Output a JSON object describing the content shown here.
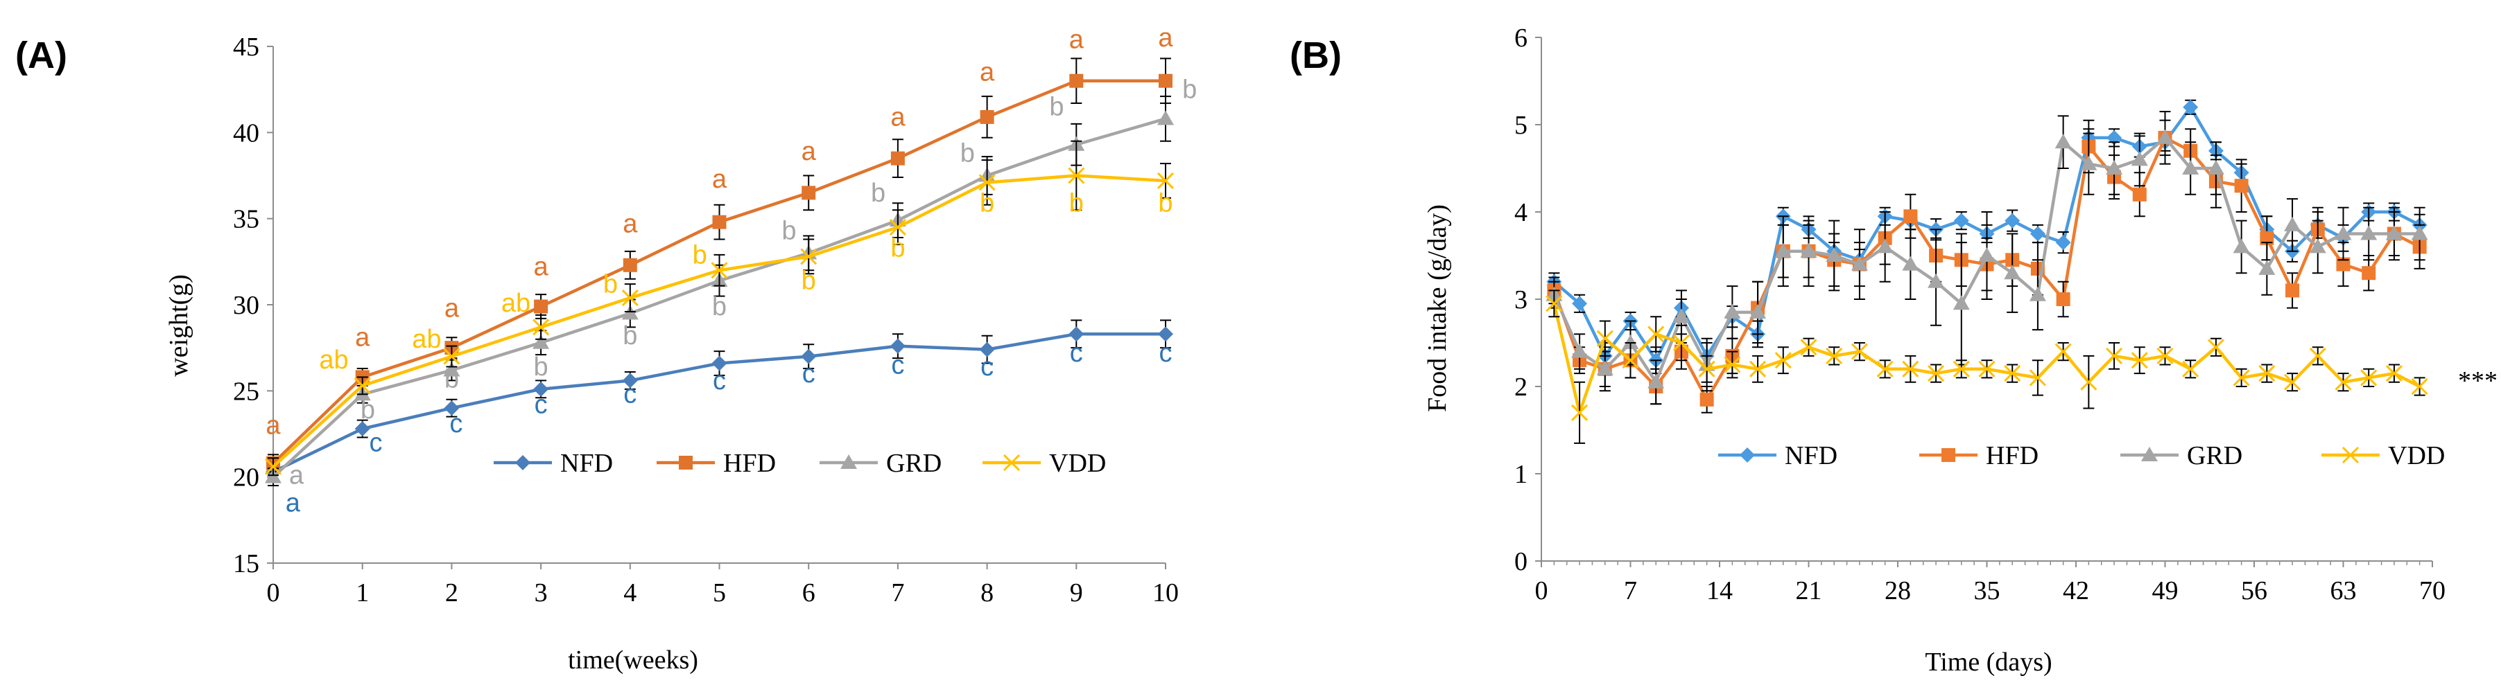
{
  "chart_data": [
    {
      "panel": "(A)",
      "type": "line",
      "xlabel": "time(weeks)",
      "ylabel": "weight(g)",
      "ylim": [
        15,
        45
      ],
      "yticks": [
        15,
        20,
        25,
        30,
        35,
        40,
        45
      ],
      "xlim": [
        0,
        10
      ],
      "xticks": [
        0,
        1,
        2,
        3,
        4,
        5,
        6,
        7,
        8,
        9,
        10
      ],
      "legend_position": "bottom-right",
      "series": [
        {
          "name": "NFD",
          "color": "#4a7ebb",
          "marker": "diamond",
          "x": [
            0,
            1,
            2,
            3,
            4,
            5,
            6,
            7,
            8,
            9,
            10
          ],
          "values": [
            20.3,
            22.8,
            24.0,
            25.1,
            25.6,
            26.6,
            27.0,
            27.6,
            27.4,
            28.3,
            28.3
          ],
          "errors": [
            0.5,
            0.5,
            0.5,
            0.5,
            0.5,
            0.7,
            0.7,
            0.7,
            0.8,
            0.8,
            0.8
          ]
        },
        {
          "name": "HFD",
          "color": "#e0742c",
          "marker": "square",
          "x": [
            0,
            1,
            2,
            3,
            4,
            5,
            6,
            7,
            8,
            9,
            10
          ],
          "values": [
            20.8,
            25.8,
            27.5,
            29.9,
            32.3,
            34.8,
            36.5,
            38.5,
            40.9,
            43.0,
            43.0
          ],
          "errors": [
            0.5,
            0.5,
            0.6,
            0.7,
            0.8,
            1.0,
            1.0,
            1.1,
            1.2,
            1.3,
            1.3
          ]
        },
        {
          "name": "GRD",
          "color": "#a5a5a5",
          "marker": "triangle",
          "x": [
            0,
            1,
            2,
            3,
            4,
            5,
            6,
            7,
            8,
            9,
            10
          ],
          "values": [
            20.0,
            24.8,
            26.2,
            27.8,
            29.5,
            31.4,
            33.0,
            34.9,
            37.5,
            39.3,
            40.8
          ],
          "errors": [
            0.5,
            0.5,
            0.6,
            0.7,
            0.8,
            0.9,
            1.0,
            1.0,
            1.1,
            1.2,
            1.3
          ]
        },
        {
          "name": "VDD",
          "color": "#ffc000",
          "marker": "x",
          "x": [
            0,
            1,
            2,
            3,
            4,
            5,
            6,
            7,
            8,
            9,
            10
          ],
          "values": [
            20.6,
            25.3,
            27.0,
            28.7,
            30.4,
            32.0,
            32.8,
            34.5,
            37.1,
            37.5,
            37.2
          ],
          "errors": [
            0.5,
            0.5,
            0.6,
            0.7,
            0.8,
            0.9,
            1.0,
            1.0,
            1.3,
            2.0,
            1.0
          ]
        }
      ],
      "annotations": [
        {
          "text": "a",
          "series": "HFD",
          "x": 0,
          "y": 22.5
        },
        {
          "text": "a",
          "series": "GRD",
          "x": 0.26,
          "y": 19.6
        },
        {
          "text": "a",
          "series": "NFD",
          "x": 0.22,
          "y": 18.0
        },
        {
          "text": "c",
          "series": "NFD",
          "x": 1.15,
          "y": 21.5
        },
        {
          "text": "b",
          "series": "GRD",
          "x": 1.06,
          "y": 23.4
        },
        {
          "text": "ab",
          "series": "VDD",
          "x": 0.68,
          "y": 26.3
        },
        {
          "text": "a",
          "series": "HFD",
          "x": 1.0,
          "y": 27.6
        },
        {
          "text": "c",
          "series": "NFD",
          "x": 2.05,
          "y": 22.6
        },
        {
          "text": "b",
          "series": "GRD",
          "x": 2.0,
          "y": 25.2
        },
        {
          "text": "ab",
          "series": "VDD",
          "x": 1.72,
          "y": 27.5
        },
        {
          "text": "a",
          "series": "HFD",
          "x": 2.0,
          "y": 29.3
        },
        {
          "text": "c",
          "series": "NFD",
          "x": 3.0,
          "y": 23.7
        },
        {
          "text": "b",
          "series": "GRD",
          "x": 3.0,
          "y": 25.9
        },
        {
          "text": "ab",
          "series": "VDD",
          "x": 2.72,
          "y": 29.6
        },
        {
          "text": "a",
          "series": "HFD",
          "x": 3.0,
          "y": 31.7
        },
        {
          "text": "c",
          "series": "NFD",
          "x": 4.0,
          "y": 24.3
        },
        {
          "text": "b",
          "series": "GRD",
          "x": 4.0,
          "y": 27.7
        },
        {
          "text": "b",
          "series": "VDD",
          "x": 3.78,
          "y": 30.7
        },
        {
          "text": "a",
          "series": "HFD",
          "x": 4.0,
          "y": 34.2
        },
        {
          "text": "c",
          "series": "NFD",
          "x": 5.0,
          "y": 25.1
        },
        {
          "text": "b",
          "series": "GRD",
          "x": 5.0,
          "y": 29.4
        },
        {
          "text": "b",
          "series": "VDD",
          "x": 4.78,
          "y": 32.4
        },
        {
          "text": "a",
          "series": "HFD",
          "x": 5.0,
          "y": 36.8
        },
        {
          "text": "c",
          "series": "NFD",
          "x": 6.0,
          "y": 25.5
        },
        {
          "text": "b",
          "series": "VDD",
          "x": 6.0,
          "y": 30.9
        },
        {
          "text": "b",
          "series": "GRD",
          "x": 5.78,
          "y": 33.8
        },
        {
          "text": "a",
          "series": "HFD",
          "x": 6.0,
          "y": 38.4
        },
        {
          "text": "c",
          "series": "NFD",
          "x": 7.0,
          "y": 26.0
        },
        {
          "text": "b",
          "series": "VDD",
          "x": 7.0,
          "y": 32.8
        },
        {
          "text": "b",
          "series": "GRD",
          "x": 6.78,
          "y": 36.0
        },
        {
          "text": "a",
          "series": "HFD",
          "x": 7.0,
          "y": 40.4
        },
        {
          "text": "c",
          "series": "NFD",
          "x": 8.0,
          "y": 25.9
        },
        {
          "text": "b",
          "series": "VDD",
          "x": 8.0,
          "y": 35.4
        },
        {
          "text": "b",
          "series": "GRD",
          "x": 7.78,
          "y": 38.3
        },
        {
          "text": "a",
          "series": "HFD",
          "x": 8.0,
          "y": 43.0
        },
        {
          "text": "c",
          "series": "NFD",
          "x": 9.0,
          "y": 26.7
        },
        {
          "text": "b",
          "series": "VDD",
          "x": 9.0,
          "y": 35.4
        },
        {
          "text": "b",
          "series": "GRD",
          "x": 8.78,
          "y": 41.0
        },
        {
          "text": "a",
          "series": "HFD",
          "x": 9.0,
          "y": 44.9
        },
        {
          "text": "c",
          "series": "NFD",
          "x": 10.0,
          "y": 26.7
        },
        {
          "text": "b",
          "series": "VDD",
          "x": 10.0,
          "y": 35.4
        },
        {
          "text": "b",
          "series": "GRD",
          "x": 10.27,
          "y": 42.0
        },
        {
          "text": "a",
          "series": "HFD",
          "x": 10.0,
          "y": 45.0
        }
      ]
    },
    {
      "panel": "(B)",
      "type": "line",
      "xlabel": "Time (days)",
      "ylabel": "Food intake (g/day)",
      "ylim": [
        0,
        6
      ],
      "yticks": [
        0,
        1,
        2,
        3,
        4,
        5,
        6
      ],
      "xlim": [
        0,
        70
      ],
      "xticks": [
        0,
        7,
        14,
        21,
        28,
        35,
        42,
        49,
        56,
        63,
        70
      ],
      "legend_position": "center",
      "annotation": "***",
      "series": [
        {
          "name": "NFD",
          "color": "#4a9be0",
          "marker": "diamond",
          "x": [
            1,
            3,
            5,
            7,
            9,
            11,
            13,
            15,
            17,
            19,
            21,
            23,
            25,
            27,
            29,
            31,
            33,
            35,
            37,
            39,
            41,
            43,
            45,
            47,
            49,
            51,
            53,
            55,
            57,
            59,
            61,
            63,
            65,
            67,
            69
          ],
          "values": [
            3.2,
            2.95,
            2.35,
            2.75,
            2.3,
            2.9,
            2.35,
            2.8,
            2.6,
            3.95,
            3.8,
            3.55,
            3.45,
            3.95,
            3.9,
            3.8,
            3.9,
            3.75,
            3.9,
            3.75,
            3.65,
            4.85,
            4.85,
            4.75,
            4.8,
            5.2,
            4.7,
            4.45,
            3.8,
            3.55,
            3.85,
            3.7,
            4.0,
            4.0,
            3.85
          ],
          "errors": [
            0.1,
            0.1,
            0.15,
            0.1,
            0.15,
            0.1,
            0.15,
            0.12,
            0.15,
            0.1,
            0.1,
            0.1,
            0.12,
            0.1,
            0.1,
            0.12,
            0.1,
            0.1,
            0.12,
            0.1,
            0.12,
            0.1,
            0.1,
            0.12,
            0.1,
            0.08,
            0.1,
            0.1,
            0.15,
            0.12,
            0.15,
            0.15,
            0.1,
            0.1,
            0.12
          ]
        },
        {
          "name": "HFD",
          "color": "#ef7b2e",
          "marker": "square",
          "x": [
            1,
            3,
            5,
            7,
            9,
            11,
            13,
            15,
            17,
            19,
            21,
            23,
            25,
            27,
            29,
            31,
            33,
            35,
            37,
            39,
            41,
            43,
            45,
            47,
            49,
            51,
            53,
            55,
            57,
            59,
            61,
            63,
            65,
            67,
            69
          ],
          "values": [
            3.1,
            2.3,
            2.2,
            2.3,
            2.0,
            2.4,
            1.85,
            2.35,
            2.9,
            3.55,
            3.55,
            3.45,
            3.4,
            3.7,
            3.95,
            3.5,
            3.45,
            3.4,
            3.45,
            3.35,
            3.0,
            4.75,
            4.4,
            4.2,
            4.85,
            4.7,
            4.35,
            4.3,
            3.7,
            3.1,
            3.8,
            3.4,
            3.3,
            3.75,
            3.6
          ],
          "errors": [
            0.15,
            0.15,
            0.2,
            0.2,
            0.2,
            0.2,
            0.15,
            0.2,
            0.3,
            0.3,
            0.3,
            0.3,
            0.25,
            0.3,
            0.25,
            0.3,
            0.3,
            0.3,
            0.3,
            0.3,
            0.2,
            0.3,
            0.25,
            0.25,
            0.2,
            0.25,
            0.3,
            0.3,
            0.25,
            0.2,
            0.25,
            0.25,
            0.2,
            0.25,
            0.25
          ]
        },
        {
          "name": "GRD",
          "color": "#a5a5a5",
          "marker": "triangle",
          "x": [
            1,
            3,
            5,
            7,
            9,
            11,
            13,
            15,
            17,
            19,
            21,
            23,
            25,
            27,
            29,
            31,
            33,
            35,
            37,
            39,
            41,
            43,
            45,
            47,
            49,
            51,
            53,
            55,
            57,
            59,
            61,
            63,
            65,
            67,
            69
          ],
          "values": [
            3.05,
            2.4,
            2.2,
            2.5,
            2.05,
            2.8,
            2.25,
            2.85,
            2.85,
            3.55,
            3.55,
            3.5,
            3.4,
            3.6,
            3.4,
            3.2,
            2.95,
            3.5,
            3.3,
            3.05,
            4.8,
            4.55,
            4.5,
            4.6,
            4.85,
            4.5,
            4.5,
            3.6,
            3.35,
            3.85,
            3.6,
            3.75,
            3.75,
            3.75,
            3.75
          ],
          "errors": [
            0.15,
            0.2,
            0.25,
            0.25,
            0.25,
            0.3,
            0.3,
            0.3,
            0.35,
            0.4,
            0.4,
            0.4,
            0.4,
            0.4,
            0.4,
            0.5,
            0.7,
            0.5,
            0.45,
            0.4,
            0.3,
            0.35,
            0.3,
            0.3,
            0.3,
            0.3,
            0.3,
            0.3,
            0.3,
            0.3,
            0.3,
            0.3,
            0.3,
            0.3,
            0.3
          ]
        },
        {
          "name": "VDD",
          "color": "#ffc000",
          "marker": "x",
          "x": [
            1,
            3,
            5,
            7,
            9,
            11,
            13,
            15,
            17,
            19,
            21,
            23,
            25,
            27,
            29,
            31,
            33,
            35,
            37,
            39,
            41,
            43,
            45,
            47,
            49,
            51,
            53,
            55,
            57,
            59,
            61,
            63,
            65,
            67,
            69
          ],
          "values": [
            2.95,
            1.7,
            2.55,
            2.3,
            2.6,
            2.5,
            2.2,
            2.25,
            2.2,
            2.3,
            2.45,
            2.35,
            2.4,
            2.2,
            2.2,
            2.15,
            2.2,
            2.2,
            2.15,
            2.1,
            2.4,
            2.05,
            2.35,
            2.3,
            2.35,
            2.2,
            2.45,
            2.1,
            2.15,
            2.05,
            2.35,
            2.05,
            2.1,
            2.15,
            2.0
          ],
          "errors": [
            0.15,
            0.35,
            0.2,
            0.2,
            0.2,
            0.2,
            0.15,
            0.15,
            0.15,
            0.15,
            0.1,
            0.1,
            0.1,
            0.1,
            0.15,
            0.1,
            0.1,
            0.1,
            0.1,
            0.2,
            0.1,
            0.3,
            0.15,
            0.15,
            0.1,
            0.1,
            0.1,
            0.1,
            0.1,
            0.1,
            0.1,
            0.1,
            0.1,
            0.1,
            0.1
          ]
        }
      ]
    }
  ],
  "colors": {
    "axis": "#8c8c8c",
    "errorbar": "#000000"
  }
}
